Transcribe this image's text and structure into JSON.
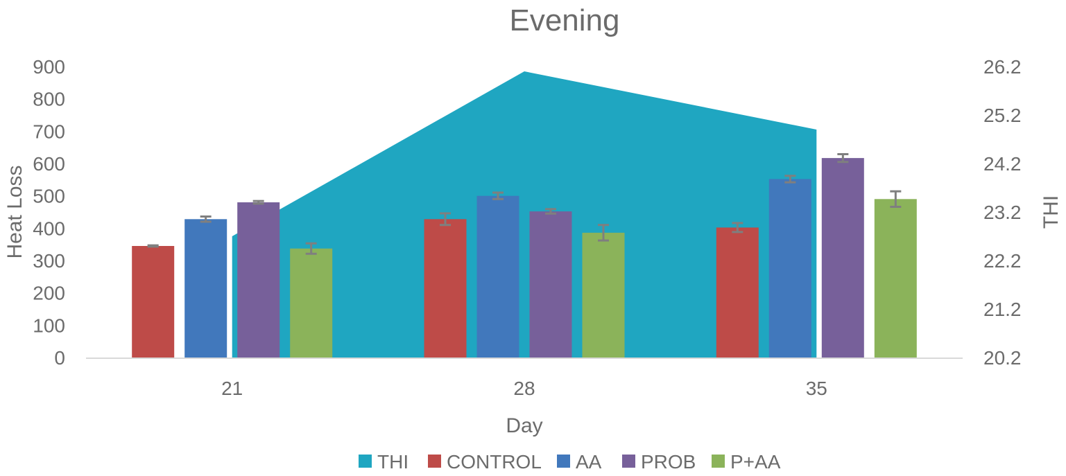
{
  "chart_data": {
    "type": "bar",
    "title": "Evening",
    "xlabel": "Day",
    "ylabel": "Heat Loss",
    "y2label": "THI",
    "categories": [
      "21",
      "28",
      "35"
    ],
    "ylim": [
      0,
      900
    ],
    "yticks": [
      "0",
      "100",
      "200",
      "300",
      "400",
      "500",
      "600",
      "700",
      "800",
      "900"
    ],
    "y2lim": [
      20.2,
      26.2
    ],
    "y2ticks": [
      "20.2",
      "21.2",
      "22.2",
      "23.2",
      "24.2",
      "25.2",
      "26.2"
    ],
    "area_series": {
      "name": "THI",
      "axis": "secondary",
      "color": "#1FA6C1",
      "values": [
        22.7,
        26.1,
        24.9
      ]
    },
    "series": [
      {
        "name": "CONTROL",
        "color": "#BE4B48",
        "values": [
          345,
          428,
          402
        ],
        "errors": [
          2,
          18,
          14
        ]
      },
      {
        "name": "AA",
        "color": "#4178BC",
        "values": [
          428,
          500,
          552
        ],
        "errors": [
          8,
          10,
          10
        ]
      },
      {
        "name": "PROB",
        "color": "#77609A",
        "values": [
          480,
          452,
          617
        ],
        "errors": [
          4,
          7,
          12
        ]
      },
      {
        "name": "P+AA",
        "color": "#8BB35A",
        "values": [
          337,
          386,
          490
        ],
        "errors": [
          16,
          24,
          24
        ]
      }
    ],
    "legend": {
      "position": "bottom"
    },
    "grid": false
  }
}
